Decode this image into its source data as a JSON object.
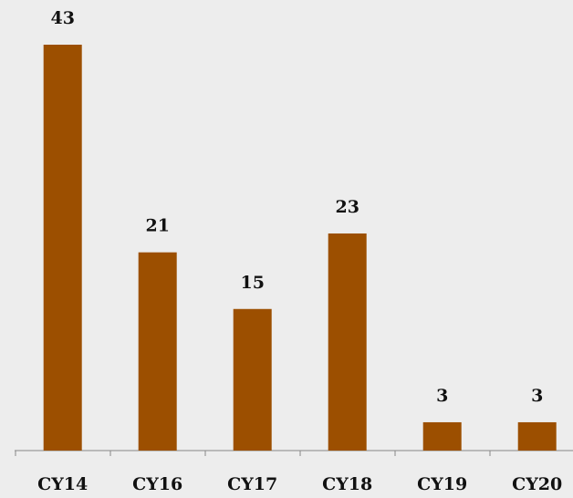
{
  "chart_data": {
    "type": "bar",
    "categories": [
      "CY14",
      "CY16",
      "CY17",
      "CY18",
      "CY19",
      "CY20"
    ],
    "values": [
      43,
      21,
      15,
      23,
      3,
      3
    ],
    "color": "#9c4f00"
  }
}
